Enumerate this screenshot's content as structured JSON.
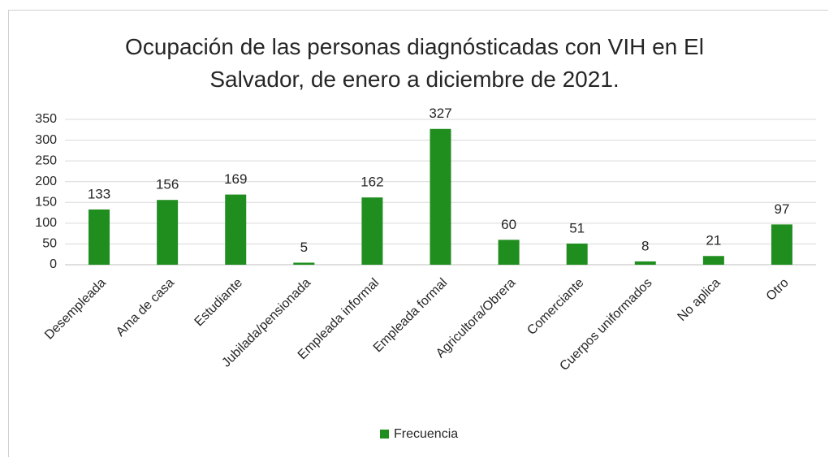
{
  "chart_data": {
    "type": "bar",
    "title": "Ocupación de las personas diagnósticadas con VIH en El Salvador, de enero a diciembre de 2021.",
    "categories": [
      "Desempleada",
      "Ama de casa",
      "Estudiante",
      "Jubilada/pensionada",
      "Empleada informal",
      "Empleada formal",
      "Agricultora/Obrera",
      "Comerciante",
      "Cuerpos uniformados",
      "No aplica",
      "Otro"
    ],
    "series": [
      {
        "name": "Frecuencia",
        "color": "#1f8e1f",
        "values": [
          133,
          156,
          169,
          5,
          162,
          327,
          60,
          51,
          8,
          21,
          97
        ]
      }
    ],
    "ylim": [
      0,
      350
    ],
    "yticks": [
      0,
      50,
      100,
      150,
      200,
      250,
      300,
      350
    ],
    "grid": true,
    "legend": "bottom"
  }
}
